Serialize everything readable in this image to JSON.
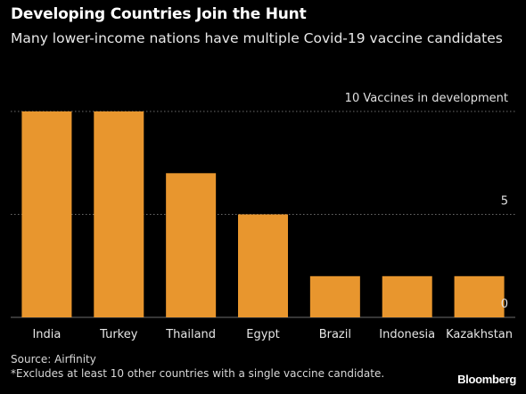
{
  "colors": {
    "background": "#000000",
    "bar": "#E8962E",
    "gridline": "#6b6b6b",
    "text": "#ffffff"
  },
  "header": {
    "title": "Developing Countries Join the Hunt",
    "subtitle": "Many lower-income nations have multiple Covid-19 vaccine candidates"
  },
  "footer": {
    "source": "Source: Airfinity",
    "footnote": "*Excludes at least 10 other countries with a single vaccine candidate.",
    "brand": "Bloomberg"
  },
  "chart_data": {
    "type": "bar",
    "title": "Developing Countries Join the Hunt",
    "subtitle": "Many lower-income nations have multiple Covid-19 vaccine candidates",
    "categories": [
      "India",
      "Turkey",
      "Thailand",
      "Egypt",
      "Brazil",
      "Indonesia",
      "Kazakhstan"
    ],
    "values": [
      10,
      10,
      7,
      5,
      2,
      2,
      2
    ],
    "ylim": [
      0,
      10
    ],
    "yticks": [
      0,
      5,
      10
    ],
    "ytick_labels": [
      "0",
      "5",
      "10 Vaccines in development"
    ],
    "ylabel": "Vaccines in development",
    "grid": true,
    "gridline_style": "dotted",
    "ytick_position": "right"
  }
}
